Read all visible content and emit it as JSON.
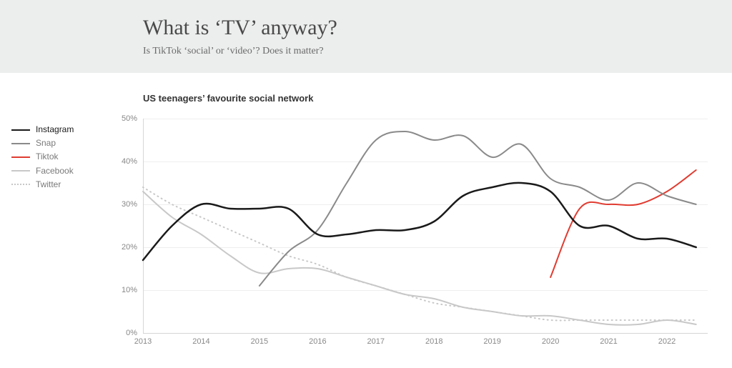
{
  "header": {
    "title": "What is ‘TV’ anyway?",
    "subtitle": "Is TikTok ‘social’ or ‘video’? Does it matter?",
    "background_color": "#eceded",
    "title_color": "#4a4a4a",
    "subtitle_color": "#6a6a6a",
    "title_fontsize": 30,
    "subtitle_fontsize": 14
  },
  "chart": {
    "type": "line",
    "title": "US teenagers’ favourite social network",
    "title_fontsize": 13,
    "title_color": "#333333",
    "background_color": "#ffffff",
    "grid_color": "#eeeeee",
    "axis_color": "#d6d6d6",
    "tick_label_color": "#888888",
    "tick_label_fontsize": 11,
    "x": {
      "min": 2013,
      "max": 2022.7,
      "ticks": [
        2013,
        2014,
        2015,
        2016,
        2017,
        2018,
        2019,
        2020,
        2021,
        2022
      ],
      "tick_labels": [
        "2013",
        "2014",
        "2015",
        "2016",
        "2017",
        "2018",
        "2019",
        "2020",
        "2021",
        "2022"
      ]
    },
    "y": {
      "min": 0,
      "max": 50,
      "ticks": [
        0,
        10,
        20,
        30,
        40,
        50
      ],
      "tick_labels": [
        "0%",
        "10%",
        "20%",
        "30%",
        "40%",
        "50%"
      ],
      "unit": "%"
    },
    "series": [
      {
        "name": "Instagram",
        "legend_label": "Instagram",
        "color": "#1a1a1a",
        "line_width": 2.5,
        "dash": "solid",
        "points": [
          [
            2013.0,
            17
          ],
          [
            2013.5,
            25
          ],
          [
            2014.0,
            30
          ],
          [
            2014.5,
            29
          ],
          [
            2015.0,
            29
          ],
          [
            2015.5,
            29
          ],
          [
            2016.0,
            23
          ],
          [
            2016.5,
            23
          ],
          [
            2017.0,
            24
          ],
          [
            2017.5,
            24
          ],
          [
            2018.0,
            26
          ],
          [
            2018.5,
            32
          ],
          [
            2019.0,
            34
          ],
          [
            2019.5,
            35
          ],
          [
            2020.0,
            33
          ],
          [
            2020.5,
            25
          ],
          [
            2021.0,
            25
          ],
          [
            2021.5,
            22
          ],
          [
            2022.0,
            22
          ],
          [
            2022.5,
            20
          ]
        ]
      },
      {
        "name": "Snap",
        "legend_label": "Snap",
        "color": "#8a8a8a",
        "line_width": 2,
        "dash": "solid",
        "points": [
          [
            2015.0,
            11
          ],
          [
            2015.5,
            19
          ],
          [
            2016.0,
            24
          ],
          [
            2016.5,
            35
          ],
          [
            2017.0,
            45
          ],
          [
            2017.5,
            47
          ],
          [
            2018.0,
            45
          ],
          [
            2018.5,
            46
          ],
          [
            2019.0,
            41
          ],
          [
            2019.5,
            44
          ],
          [
            2020.0,
            36
          ],
          [
            2020.5,
            34
          ],
          [
            2021.0,
            31
          ],
          [
            2021.5,
            35
          ],
          [
            2022.0,
            32
          ],
          [
            2022.5,
            30
          ]
        ]
      },
      {
        "name": "Tiktok",
        "legend_label": "Tiktok",
        "color": "#e03c31",
        "line_width": 2,
        "dash": "solid",
        "points": [
          [
            2020.0,
            13
          ],
          [
            2020.5,
            29
          ],
          [
            2021.0,
            30
          ],
          [
            2021.5,
            30
          ],
          [
            2022.0,
            33
          ],
          [
            2022.5,
            38
          ]
        ]
      },
      {
        "name": "Facebook",
        "legend_label": "Facebook",
        "color": "#c8c8c8",
        "line_width": 2,
        "dash": "solid",
        "points": [
          [
            2013.0,
            33
          ],
          [
            2013.5,
            27
          ],
          [
            2014.0,
            23
          ],
          [
            2014.5,
            18
          ],
          [
            2015.0,
            14
          ],
          [
            2015.5,
            15
          ],
          [
            2016.0,
            15
          ],
          [
            2016.5,
            13
          ],
          [
            2017.0,
            11
          ],
          [
            2017.5,
            9
          ],
          [
            2018.0,
            8
          ],
          [
            2018.5,
            6
          ],
          [
            2019.0,
            5
          ],
          [
            2019.5,
            4
          ],
          [
            2020.0,
            4
          ],
          [
            2020.5,
            3
          ],
          [
            2021.0,
            2
          ],
          [
            2021.5,
            2
          ],
          [
            2022.0,
            3
          ],
          [
            2022.5,
            2
          ]
        ]
      },
      {
        "name": "Twitter",
        "legend_label": "Twitter",
        "color": "#c8c8c8",
        "line_width": 2,
        "dash": "dotted",
        "points": [
          [
            2013.0,
            34
          ],
          [
            2013.5,
            30
          ],
          [
            2014.0,
            27
          ],
          [
            2014.5,
            24
          ],
          [
            2015.0,
            21
          ],
          [
            2015.5,
            18
          ],
          [
            2016.0,
            16
          ],
          [
            2016.5,
            13
          ],
          [
            2017.0,
            11
          ],
          [
            2017.5,
            9
          ],
          [
            2018.0,
            7
          ],
          [
            2018.5,
            6
          ],
          [
            2019.0,
            5
          ],
          [
            2019.5,
            4
          ],
          [
            2020.0,
            3
          ],
          [
            2020.5,
            3
          ],
          [
            2021.0,
            3
          ],
          [
            2021.5,
            3
          ],
          [
            2022.0,
            3
          ],
          [
            2022.5,
            3
          ]
        ]
      }
    ],
    "legend": {
      "position": "left-outside",
      "label_color": "#555555",
      "label_fontsize": 12
    }
  }
}
